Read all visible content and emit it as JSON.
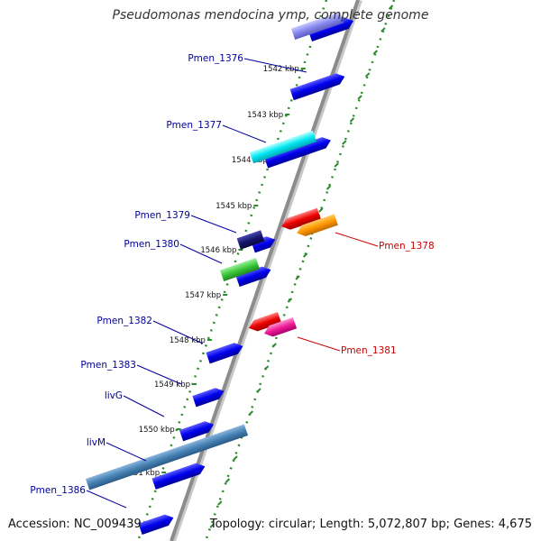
{
  "title": "Pseudomonas mendocina ymp, complete genome",
  "footer": {
    "accession": "Accession: NC_009439",
    "summary": "Topology: circular; Length: 5,072,807 bp; Genes: 4,675"
  },
  "colors": {
    "forward_label": "#00009c",
    "reverse_label": "#cc0000",
    "backbone": "#8c8c8c",
    "tick": "#2e8b2e"
  },
  "kbp_ticks": [
    {
      "label": "1542 kbp"
    },
    {
      "label": "1543 kbp"
    },
    {
      "label": "1544 kbp"
    },
    {
      "label": "1545 kbp"
    },
    {
      "label": "1546 kbp"
    },
    {
      "label": "1547 kbp"
    },
    {
      "label": "1548 kbp"
    },
    {
      "label": "1549 kbp"
    },
    {
      "label": "1550 kbp"
    },
    {
      "label": "1551 kbp"
    }
  ],
  "genes": [
    {
      "label": "Pmen_1376",
      "strand": "forward"
    },
    {
      "label": "Pmen_1377",
      "strand": "forward"
    },
    {
      "label": "Pmen_1379",
      "strand": "forward"
    },
    {
      "label": "Pmen_1380",
      "strand": "forward"
    },
    {
      "label": "Pmen_1382",
      "strand": "forward"
    },
    {
      "label": "Pmen_1383",
      "strand": "forward"
    },
    {
      "label": "livG",
      "strand": "forward"
    },
    {
      "label": "livM",
      "strand": "forward"
    },
    {
      "label": "Pmen_1386",
      "strand": "forward"
    },
    {
      "label": "Pmen_1378",
      "strand": "reverse"
    },
    {
      "label": "Pmen_1381",
      "strand": "reverse"
    }
  ]
}
